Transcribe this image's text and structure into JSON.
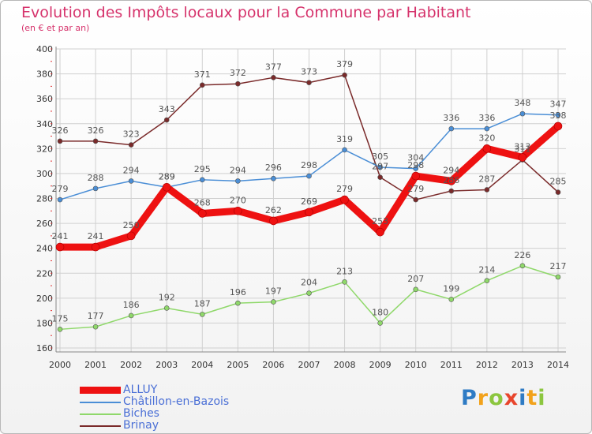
{
  "header": {
    "title": "Evolution des Impôts locaux pour la Commune par Habitant",
    "subtitle": "(en € et par an)"
  },
  "chart_data": {
    "type": "line",
    "title": "Evolution des Impôts locaux pour la Commune par Habitant",
    "subtitle": "(en € et par an)",
    "xlabel": "",
    "ylabel": "",
    "ylim": [
      160,
      400
    ],
    "yticks": [
      160,
      180,
      200,
      220,
      240,
      260,
      280,
      300,
      320,
      340,
      360,
      380,
      400
    ],
    "grid": true,
    "legend_position": "bottom-left",
    "categories": [
      "2000",
      "2001",
      "2002",
      "2003",
      "2004",
      "2005",
      "2006",
      "2007",
      "2008",
      "2009",
      "2010",
      "2011",
      "2012",
      "2013",
      "2014"
    ],
    "series": [
      {
        "name": "ALLUY",
        "color": "#ee1111",
        "values": [
          241,
          241,
          250,
          289,
          268,
          270,
          262,
          269,
          279,
          253,
          298,
          294,
          320,
          313,
          338
        ]
      },
      {
        "name": "Châtillon-en-Bazois",
        "color": "#4a8ed6",
        "values": [
          279,
          288,
          294,
          289,
          295,
          294,
          296,
          298,
          319,
          305,
          304,
          336,
          336,
          348,
          347
        ]
      },
      {
        "name": "Biches",
        "color": "#8fd86a",
        "values": [
          175,
          177,
          186,
          192,
          187,
          196,
          197,
          204,
          213,
          180,
          207,
          199,
          214,
          226,
          217
        ]
      },
      {
        "name": "Brinay",
        "color": "#7a2a2a",
        "values": [
          326,
          326,
          323,
          343,
          371,
          372,
          377,
          373,
          379,
          297,
          279,
          286,
          287,
          311,
          285
        ]
      }
    ]
  },
  "logo": {
    "letters": [
      "P",
      "r",
      "o",
      "x",
      "i",
      "t",
      "i"
    ],
    "colors": [
      "#2e7bc4",
      "#f2a21b",
      "#8cc63f",
      "#e8452c",
      "#2e7bc4",
      "#f2a21b",
      "#8cc63f"
    ]
  }
}
